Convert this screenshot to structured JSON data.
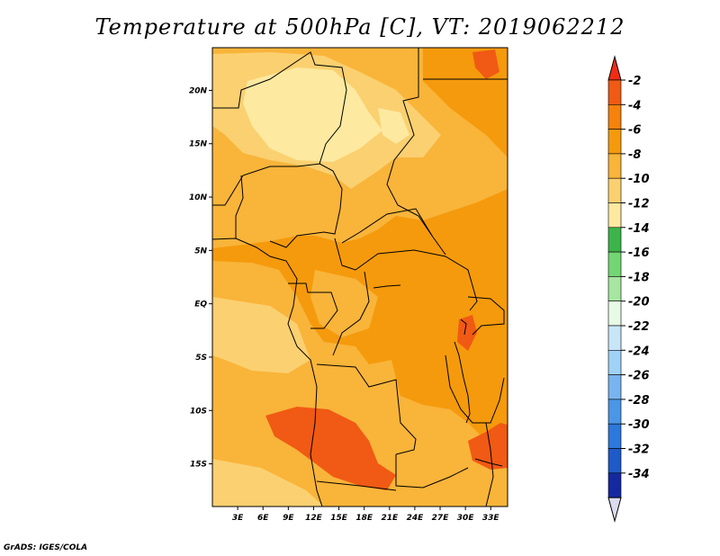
{
  "title": "Temperature at 500hPa [C], VT: 2019062212",
  "credit": "GrADS: IGES/COLA",
  "map": {
    "lon_range": [
      0,
      35
    ],
    "lat_range": [
      -19,
      24
    ],
    "lat_ticks": [
      {
        "value": 20,
        "label": "20N"
      },
      {
        "value": 15,
        "label": "15N"
      },
      {
        "value": 10,
        "label": "10N"
      },
      {
        "value": 5,
        "label": "5N"
      },
      {
        "value": 0,
        "label": "EQ"
      },
      {
        "value": -5,
        "label": "5S"
      },
      {
        "value": -10,
        "label": "10S"
      },
      {
        "value": -15,
        "label": "15S"
      }
    ],
    "lon_ticks": [
      {
        "value": 3,
        "label": "3E"
      },
      {
        "value": 6,
        "label": "6E"
      },
      {
        "value": 9,
        "label": "9E"
      },
      {
        "value": 12,
        "label": "12E"
      },
      {
        "value": 15,
        "label": "15E"
      },
      {
        "value": 18,
        "label": "18E"
      },
      {
        "value": 21,
        "label": "21E"
      },
      {
        "value": 24,
        "label": "24E"
      },
      {
        "value": 27,
        "label": "27E"
      },
      {
        "value": 30,
        "label": "30E"
      },
      {
        "value": 33,
        "label": "33E"
      }
    ],
    "field_colors": {
      "warmest": "#f05a14",
      "warm": "#f59a0c",
      "mid": "#f9b43a",
      "cool": "#fbd070",
      "coolest": "#fde9a0"
    }
  },
  "colorbar": {
    "levels": [
      "-2",
      "-4",
      "-6",
      "-8",
      "-10",
      "-12",
      "-14",
      "-16",
      "-18",
      "-20",
      "-22",
      "-24",
      "-26",
      "-28",
      "-30",
      "-32",
      "-34"
    ],
    "colors": [
      "#f05a14",
      "#f5820c",
      "#f59a0c",
      "#f9b43a",
      "#fbd070",
      "#fde9a0",
      "#3cb44a",
      "#72d672",
      "#a6e6a0",
      "#e6fae6",
      "#c8e6f8",
      "#a0d2f5",
      "#78b4f0",
      "#4b96e6",
      "#2d78dc",
      "#1e5ac8",
      "#1428a0",
      "#0a1464"
    ],
    "top_color": "#f02d14",
    "bottom_color": "#dcdcf0"
  }
}
